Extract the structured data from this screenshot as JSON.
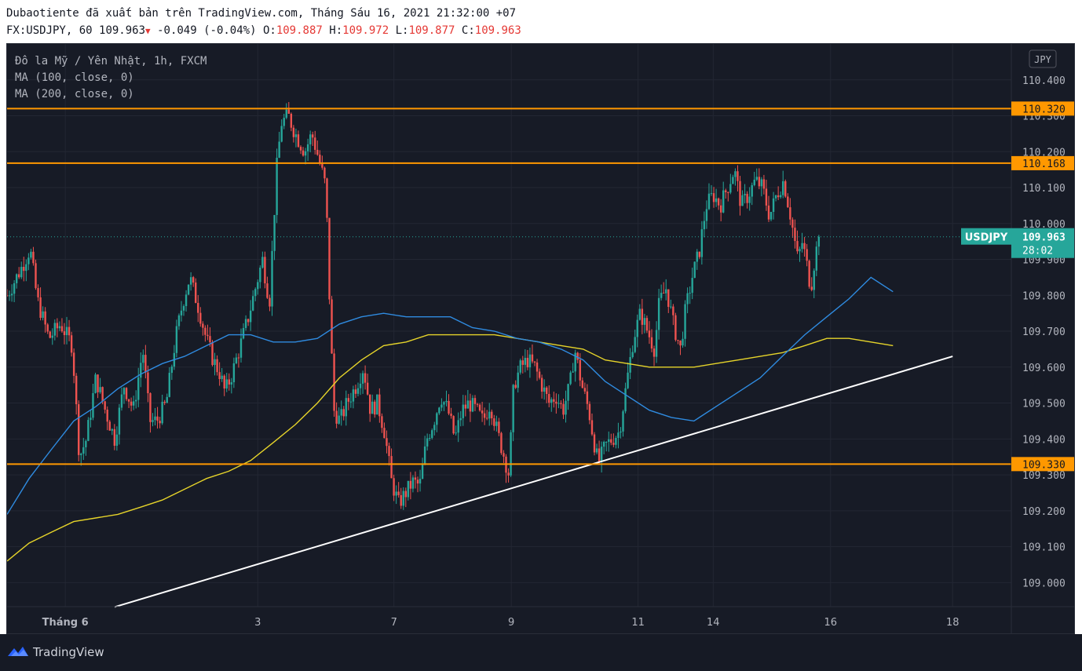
{
  "header": {
    "publish_line": "Dubaotiente đã xuất bản trên TradingView.com, Tháng Sáu 16, 2021 21:32:00 +07",
    "symbol_interval": "FX:USDJPY, 60",
    "last": "109.963",
    "change": "-0.049 (-0.04%)",
    "open_label": "O:",
    "open": "109.887",
    "high_label": "H:",
    "high": "109.972",
    "low_label": "L:",
    "low": "109.877",
    "close_label": "C:",
    "close": "109.963"
  },
  "legend": {
    "title": "Đô la Mỹ / Yên Nhật, 1h, FXCM",
    "ma100": "MA (100, close, 0)",
    "ma200": "MA (200, close, 0)"
  },
  "footer": {
    "brand": "TradingView"
  },
  "colors": {
    "background": "#171b26",
    "up": "#26a69a",
    "down": "#ef5350",
    "ma100": "#2f8be0",
    "ma200": "#e6d42a",
    "level": "#ff9800",
    "trendline": "#ffffff",
    "grid": "#232733",
    "axis_text": "#b2b5be"
  },
  "chart_data": {
    "type": "candlestick",
    "currency": "JPY",
    "yaxis": {
      "ylim": [
        108.933,
        110.5
      ],
      "ticks": [
        "109.000",
        "109.100",
        "109.200",
        "109.300",
        "109.400",
        "109.500",
        "109.600",
        "109.700",
        "109.800",
        "109.900",
        "110.000",
        "110.100",
        "110.200",
        "110.300",
        "110.400"
      ]
    },
    "xaxis": {
      "labels": [
        {
          "label": "Tháng 6",
          "t": 0
        },
        {
          "label": "3",
          "t": 41
        },
        {
          "label": "7",
          "t": 70
        },
        {
          "label": "9",
          "t": 95
        },
        {
          "label": "11",
          "t": 122
        },
        {
          "label": "14",
          "t": 138
        },
        {
          "label": "16",
          "t": 163
        },
        {
          "label": "18",
          "t": 189
        }
      ],
      "range": [
        -12.4,
        201.5
      ]
    },
    "horizontal_levels": [
      {
        "label": "110.320",
        "value": 110.32
      },
      {
        "label": "110.168",
        "value": 110.168
      },
      {
        "label": "109.330",
        "value": 109.33
      }
    ],
    "trendline": {
      "start": [
        10.5,
        108.932
      ],
      "end": [
        189,
        109.63
      ]
    },
    "last_price": {
      "symbol": "USDJPY",
      "value": 109.963,
      "countdown": "28:02"
    },
    "ma100": [
      [
        -12.4,
        109.19
      ],
      [
        -7.7,
        109.29
      ],
      [
        -3,
        109.37
      ],
      [
        1.8,
        109.45
      ],
      [
        6.5,
        109.49
      ],
      [
        11.2,
        109.54
      ],
      [
        16,
        109.58
      ],
      [
        20.7,
        109.61
      ],
      [
        25.4,
        109.63
      ],
      [
        30.1,
        109.66
      ],
      [
        34.8,
        109.69
      ],
      [
        39.5,
        109.69
      ],
      [
        44.3,
        109.67
      ],
      [
        49,
        109.67
      ],
      [
        53.7,
        109.68
      ],
      [
        58.4,
        109.72
      ],
      [
        63.1,
        109.74
      ],
      [
        67.8,
        109.75
      ],
      [
        72.6,
        109.74
      ],
      [
        77.3,
        109.74
      ],
      [
        82,
        109.74
      ],
      [
        86.7,
        109.71
      ],
      [
        91.4,
        109.7
      ],
      [
        96.2,
        109.68
      ],
      [
        100.9,
        109.67
      ],
      [
        105.6,
        109.65
      ],
      [
        110.3,
        109.62
      ],
      [
        115,
        109.56
      ],
      [
        119.7,
        109.52
      ],
      [
        124.4,
        109.48
      ],
      [
        129.1,
        109.46
      ],
      [
        133.9,
        109.45
      ],
      [
        138.6,
        109.49
      ],
      [
        143.3,
        109.53
      ],
      [
        148,
        109.57
      ],
      [
        152.7,
        109.63
      ],
      [
        157.5,
        109.69
      ],
      [
        162.2,
        109.74
      ],
      [
        166.9,
        109.79
      ],
      [
        171.6,
        109.85
      ],
      [
        176.3,
        109.81
      ]
    ],
    "ma200": [
      [
        -12.4,
        109.06
      ],
      [
        -7.7,
        109.11
      ],
      [
        -3,
        109.14
      ],
      [
        1.8,
        109.17
      ],
      [
        6.5,
        109.18
      ],
      [
        11.2,
        109.19
      ],
      [
        16,
        109.21
      ],
      [
        20.7,
        109.23
      ],
      [
        25.4,
        109.26
      ],
      [
        30.1,
        109.29
      ],
      [
        34.8,
        109.31
      ],
      [
        39.5,
        109.34
      ],
      [
        44.3,
        109.39
      ],
      [
        49,
        109.44
      ],
      [
        53.7,
        109.5
      ],
      [
        58.4,
        109.57
      ],
      [
        63.1,
        109.62
      ],
      [
        67.8,
        109.66
      ],
      [
        72.6,
        109.67
      ],
      [
        77.3,
        109.69
      ],
      [
        82,
        109.69
      ],
      [
        86.7,
        109.69
      ],
      [
        91.4,
        109.69
      ],
      [
        96.2,
        109.68
      ],
      [
        100.9,
        109.67
      ],
      [
        105.6,
        109.66
      ],
      [
        110.3,
        109.65
      ],
      [
        115,
        109.62
      ],
      [
        119.7,
        109.61
      ],
      [
        124.4,
        109.6
      ],
      [
        129.1,
        109.6
      ],
      [
        133.9,
        109.6
      ],
      [
        138.6,
        109.61
      ],
      [
        143.3,
        109.62
      ],
      [
        148,
        109.63
      ],
      [
        152.7,
        109.64
      ],
      [
        157.5,
        109.66
      ],
      [
        162.2,
        109.68
      ],
      [
        166.9,
        109.68
      ],
      [
        171.6,
        109.67
      ],
      [
        176.3,
        109.66
      ]
    ],
    "close_path": [
      [
        -12.4,
        109.8
      ],
      [
        -9.2,
        109.88
      ],
      [
        -7.5,
        109.93
      ],
      [
        -6,
        109.79
      ],
      [
        -3.5,
        109.68
      ],
      [
        -1,
        109.72
      ],
      [
        1.5,
        109.66
      ],
      [
        3,
        109.35
      ],
      [
        4.5,
        109.4
      ],
      [
        6.5,
        109.57
      ],
      [
        8.5,
        109.48
      ],
      [
        10.5,
        109.4
      ],
      [
        12.5,
        109.55
      ],
      [
        14.5,
        109.48
      ],
      [
        16.5,
        109.65
      ],
      [
        18,
        109.45
      ],
      [
        19.5,
        109.45
      ],
      [
        21.5,
        109.5
      ],
      [
        23.5,
        109.68
      ],
      [
        25,
        109.78
      ],
      [
        26.5,
        109.85
      ],
      [
        28.5,
        109.76
      ],
      [
        30,
        109.68
      ],
      [
        31.5,
        109.62
      ],
      [
        33,
        109.58
      ],
      [
        34,
        109.53
      ],
      [
        35.5,
        109.58
      ],
      [
        37.5,
        109.67
      ],
      [
        39,
        109.74
      ],
      [
        40.5,
        109.82
      ],
      [
        42,
        109.9
      ],
      [
        43.5,
        109.78
      ],
      [
        45,
        110.15
      ],
      [
        46,
        110.28
      ],
      [
        47.5,
        110.3
      ],
      [
        49,
        110.25
      ],
      [
        51,
        110.2
      ],
      [
        52.5,
        110.25
      ],
      [
        54,
        110.18
      ],
      [
        55.5,
        110.1
      ],
      [
        56.3,
        109.78
      ],
      [
        57.2,
        109.48
      ],
      [
        58.5,
        109.45
      ],
      [
        60,
        109.5
      ],
      [
        62,
        109.55
      ],
      [
        63.5,
        109.6
      ],
      [
        65,
        109.48
      ],
      [
        66.5,
        109.5
      ],
      [
        68,
        109.42
      ],
      [
        69.5,
        109.28
      ],
      [
        71,
        109.22
      ],
      [
        72.5,
        109.25
      ],
      [
        74,
        109.28
      ],
      [
        75.5,
        109.27
      ],
      [
        77,
        109.4
      ],
      [
        78.5,
        109.45
      ],
      [
        80,
        109.52
      ],
      [
        81.5,
        109.48
      ],
      [
        83,
        109.4
      ],
      [
        84.5,
        109.48
      ],
      [
        86,
        109.5
      ],
      [
        87.5,
        109.48
      ],
      [
        89,
        109.45
      ],
      [
        90.5,
        109.5
      ],
      [
        92,
        109.42
      ],
      [
        93.5,
        109.35
      ],
      [
        94.5,
        109.3
      ],
      [
        95.5,
        109.55
      ],
      [
        97,
        109.6
      ],
      [
        98.5,
        109.62
      ],
      [
        100,
        109.6
      ],
      [
        101.5,
        109.55
      ],
      [
        103,
        109.5
      ],
      [
        104.5,
        109.52
      ],
      [
        106,
        109.48
      ],
      [
        107.5,
        109.55
      ],
      [
        108.5,
        109.65
      ],
      [
        110,
        109.55
      ],
      [
        111.5,
        109.48
      ],
      [
        112.5,
        109.4
      ],
      [
        113.5,
        109.33
      ],
      [
        115,
        109.38
      ],
      [
        116.5,
        109.4
      ],
      [
        118,
        109.42
      ],
      [
        119.5,
        109.55
      ],
      [
        121,
        109.68
      ],
      [
        122.5,
        109.75
      ],
      [
        124,
        109.7
      ],
      [
        125.5,
        109.65
      ],
      [
        126.5,
        109.78
      ],
      [
        128,
        109.82
      ],
      [
        129.5,
        109.72
      ],
      [
        131,
        109.65
      ],
      [
        132,
        109.75
      ],
      [
        133.5,
        109.85
      ],
      [
        135,
        109.92
      ],
      [
        136.5,
        110.05
      ],
      [
        138,
        110.08
      ],
      [
        139.5,
        110.05
      ],
      [
        141,
        110.1
      ],
      [
        142.5,
        110.15
      ],
      [
        144,
        110.05
      ],
      [
        145.5,
        110.08
      ],
      [
        147,
        110.12
      ],
      [
        148.5,
        110.1
      ],
      [
        150,
        110.02
      ],
      [
        151.5,
        110.08
      ],
      [
        153,
        110.12
      ],
      [
        154.5,
        110.02
      ],
      [
        156,
        109.9
      ],
      [
        157,
        109.95
      ],
      [
        158,
        109.88
      ],
      [
        158.8,
        109.82
      ],
      [
        159.6,
        109.9
      ],
      [
        160.5,
        109.963
      ]
    ]
  }
}
